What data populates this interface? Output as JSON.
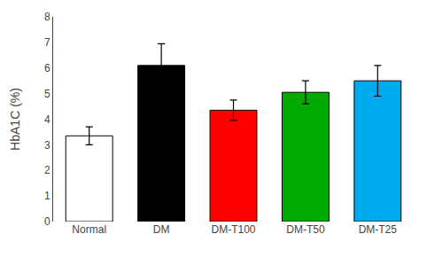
{
  "chart_data": {
    "type": "bar",
    "categories": [
      "Normal",
      "DM",
      "DM-T100",
      "DM-T50",
      "DM-T25"
    ],
    "values": [
      3.35,
      6.1,
      4.35,
      5.05,
      5.5
    ],
    "errors": [
      0.35,
      0.85,
      0.4,
      0.45,
      0.6
    ],
    "colors": [
      "#ffffff",
      "#000000",
      "#ff0000",
      "#00aa00",
      "#00aaee"
    ],
    "ylabel": "HbA1C (%)",
    "ylim": [
      0,
      8
    ],
    "yticks": [
      0,
      1,
      2,
      3,
      4,
      5,
      6,
      7,
      8
    ],
    "grid": false
  }
}
